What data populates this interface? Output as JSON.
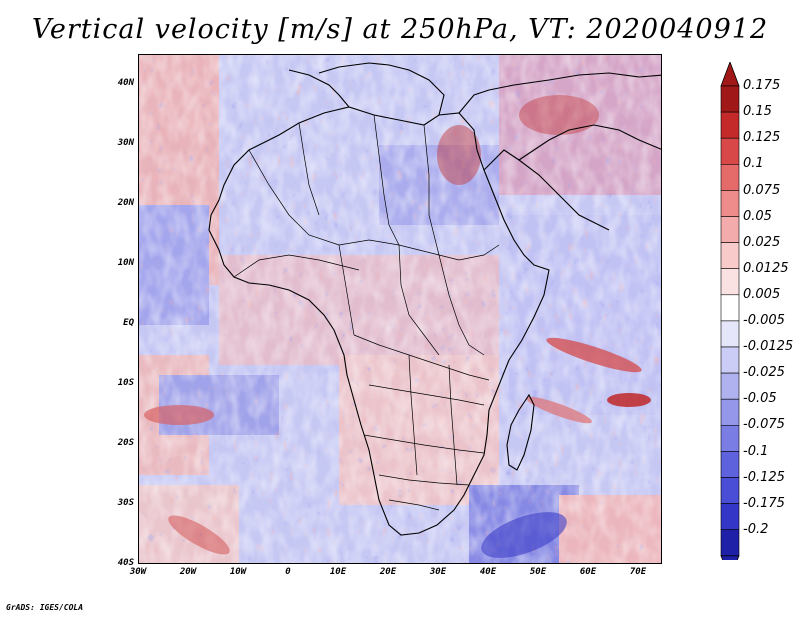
{
  "title": "Vertical velocity [m/s] at 250hPa, VT: 2020040912",
  "credit": "GrADS: IGES/COLA",
  "map": {
    "lat_labels": [
      "40N",
      "30N",
      "20N",
      "10N",
      "EQ",
      "10S",
      "20S",
      "30S",
      "40S"
    ],
    "lon_labels": [
      "30W",
      "20W",
      "10W",
      "0",
      "10E",
      "20E",
      "30E",
      "40E",
      "50E",
      "60E",
      "70E"
    ],
    "lat_range": [
      -40,
      45
    ],
    "lon_range": [
      -30,
      75
    ]
  },
  "colorbar": {
    "labels": [
      "0.175",
      "0.15",
      "0.125",
      "0.1",
      "0.075",
      "0.05",
      "0.025",
      "0.0125",
      "0.005",
      "-0.005",
      "-0.0125",
      "-0.025",
      "-0.05",
      "-0.075",
      "-0.1",
      "-0.125",
      "-0.175",
      "-0.2"
    ],
    "colors": [
      "#a01818",
      "#c42a2a",
      "#d84848",
      "#e56a6a",
      "#ee8c8c",
      "#f4abab",
      "#f8caca",
      "#fbe2e2",
      "#ffffff",
      "#e6e6fb",
      "#cccdf6",
      "#b0b2f0",
      "#9597ea",
      "#7a7de4",
      "#5f62dd",
      "#4a4dd6",
      "#3436c8",
      "#1f20a8"
    ]
  },
  "field_colors": {
    "positive": "#f3a6a6",
    "negative": "#a9abf0",
    "strong_positive": "#c02020",
    "strong_negative": "#2c2ec0"
  }
}
